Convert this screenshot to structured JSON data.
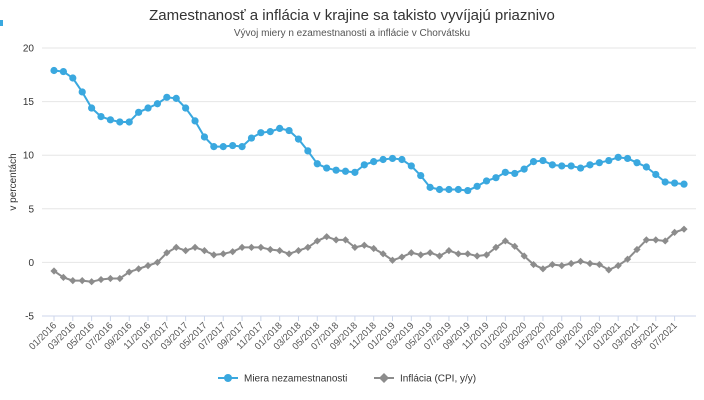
{
  "chart_data": {
    "type": "line",
    "title": "Zamestnanosť a inflácia v krajine sa takisto vyvíjajú priaznivo",
    "subtitle": "Vývoj miery n ezamestnanosti a inflácie v Chorvátsku",
    "ylabel": "v percentách",
    "xlabel": "",
    "ylim": [
      -5,
      20
    ],
    "yticks": [
      -5,
      0,
      5,
      10,
      15,
      20
    ],
    "grid": true,
    "legend_position": "bottom-center",
    "x_tick_labels": [
      "01/2016",
      "03/2016",
      "05/2016",
      "07/2016",
      "09/2016",
      "11/2016",
      "01/2017",
      "03/2017",
      "05/2017",
      "07/2017",
      "09/2017",
      "11/2017",
      "01/2018",
      "03/2018",
      "05/2018",
      "07/2018",
      "09/2018",
      "11/2018",
      "01/2019",
      "03/2019",
      "05/2019",
      "07/2019",
      "09/2019",
      "11/2019",
      "01/2020",
      "03/2020",
      "05/2020",
      "07/2020",
      "09/2020",
      "11/2020",
      "01/2021",
      "03/2021",
      "05/2021",
      "07/2021"
    ],
    "series": [
      {
        "name": "Miera nezamestnanosti",
        "color": "#3aa8df",
        "marker": "circle",
        "values": [
          17.9,
          17.8,
          17.2,
          15.9,
          14.4,
          13.6,
          13.3,
          13.1,
          13.1,
          14.0,
          14.4,
          14.8,
          15.4,
          15.3,
          14.4,
          13.2,
          11.7,
          10.8,
          10.8,
          10.9,
          10.8,
          11.6,
          12.1,
          12.2,
          12.5,
          12.3,
          11.5,
          10.4,
          9.2,
          8.8,
          8.6,
          8.5,
          8.4,
          9.1,
          9.4,
          9.6,
          9.7,
          9.6,
          9.0,
          8.1,
          7.0,
          6.8,
          6.8,
          6.8,
          6.7,
          7.1,
          7.6,
          7.9,
          8.4,
          8.3,
          8.7,
          9.4,
          9.5,
          9.1,
          9.0,
          9.0,
          8.8,
          9.1,
          9.3,
          9.5,
          9.8,
          9.7,
          9.3,
          8.9,
          8.2,
          7.5,
          7.4,
          7.3
        ]
      },
      {
        "name": "Inflácia (CPI, y/y)",
        "color": "#8c8c8c",
        "marker": "diamond",
        "values": [
          -0.8,
          -1.4,
          -1.7,
          -1.7,
          -1.8,
          -1.6,
          -1.5,
          -1.5,
          -0.9,
          -0.6,
          -0.3,
          0.0,
          0.9,
          1.4,
          1.1,
          1.4,
          1.1,
          0.7,
          0.8,
          1.0,
          1.4,
          1.4,
          1.4,
          1.2,
          1.1,
          0.8,
          1.1,
          1.4,
          2.0,
          2.4,
          2.1,
          2.1,
          1.4,
          1.6,
          1.3,
          0.8,
          0.2,
          0.5,
          0.9,
          0.7,
          0.9,
          0.6,
          1.1,
          0.8,
          0.8,
          0.6,
          0.7,
          1.4,
          2.0,
          1.5,
          0.6,
          -0.2,
          -0.6,
          -0.2,
          -0.3,
          -0.1,
          0.1,
          -0.1,
          -0.2,
          -0.7,
          -0.3,
          0.3,
          1.2,
          2.1,
          2.1,
          2.0,
          2.8,
          3.1
        ]
      }
    ]
  }
}
